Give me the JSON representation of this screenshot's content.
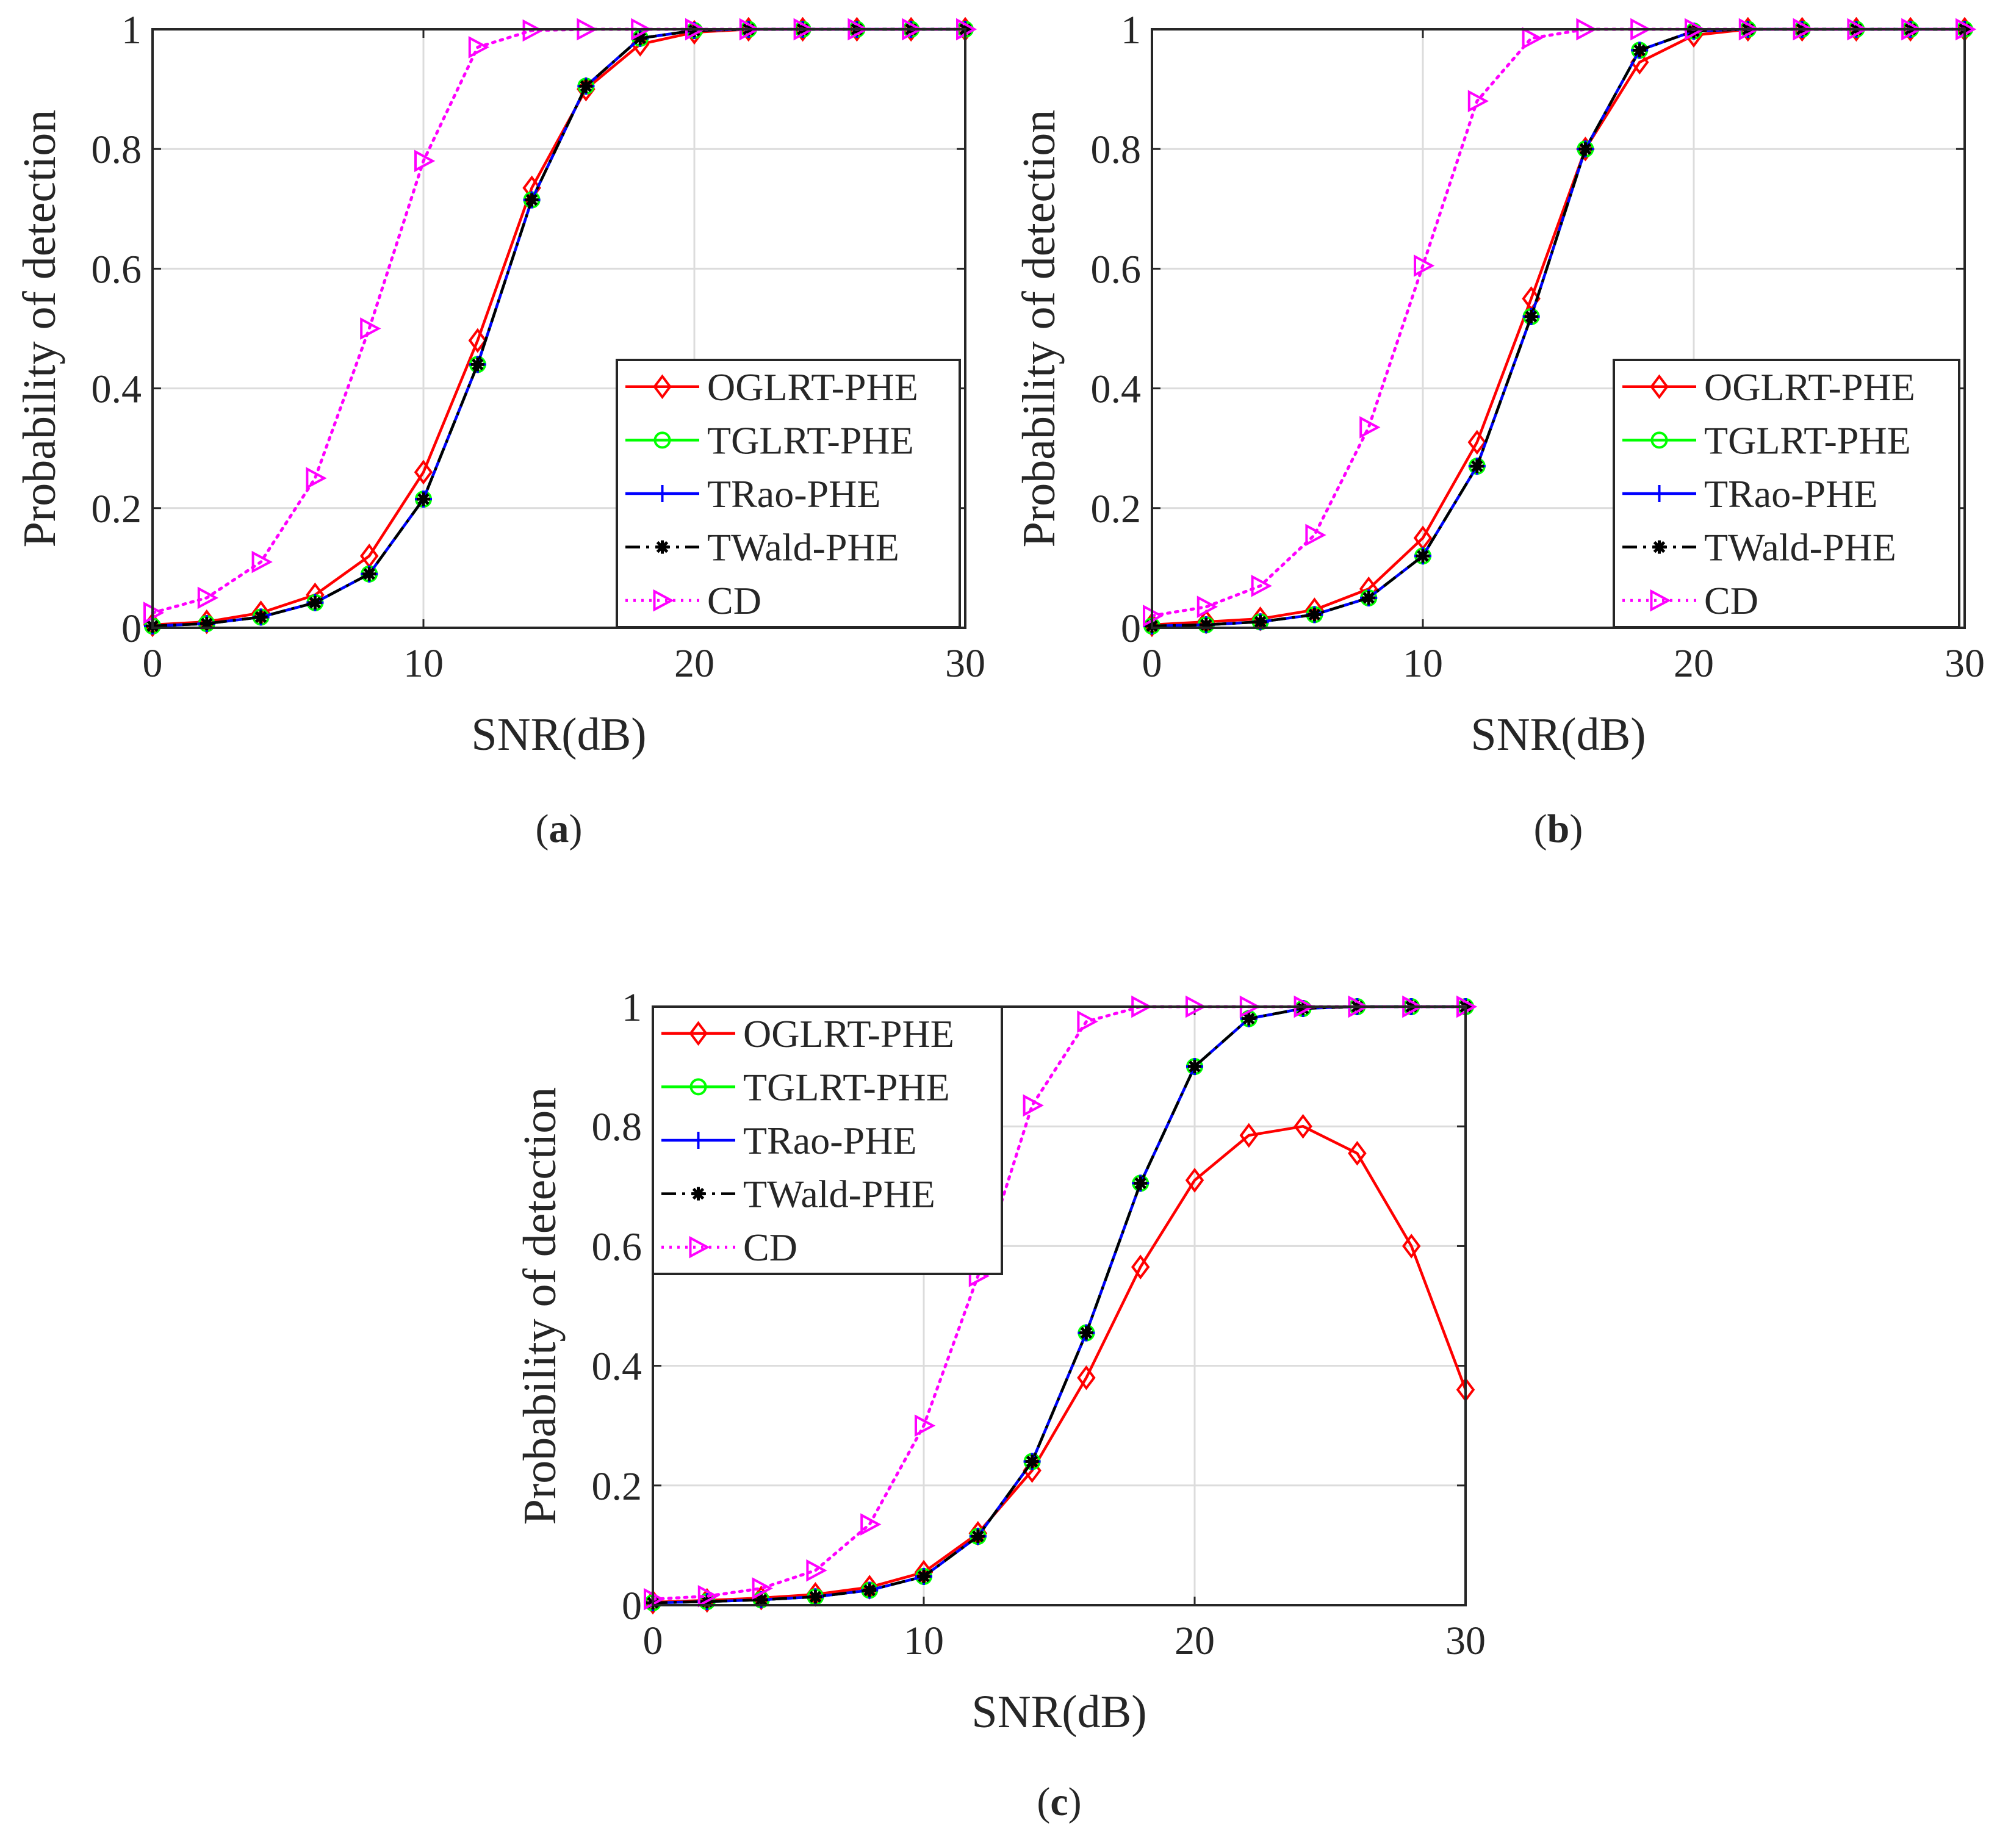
{
  "colors": {
    "OGLRT-PHE": "#ff0000",
    "TGLRT-PHE": "#00ff00",
    "TRao-PHE": "#0000ff",
    "TWald-PHE": "#000000",
    "CD": "#ff00ff",
    "grid": "#dcdcdc",
    "axis": "#262626"
  },
  "chart_data": [
    {
      "type": "line",
      "panel_label": "a",
      "xlabel": "SNR(dB)",
      "ylabel": "Probability of detection",
      "xlim": [
        0,
        30
      ],
      "ylim": [
        0,
        1
      ],
      "xticks": [
        "0",
        "10",
        "20",
        "30"
      ],
      "yticks": [
        "0",
        "0.2",
        "0.4",
        "0.6",
        "0.8",
        "1"
      ],
      "grid": true,
      "legend_position": "bottom-right",
      "x": [
        0,
        2,
        4,
        6,
        8,
        10,
        12,
        14,
        16,
        18,
        20,
        22,
        24,
        26,
        28,
        30
      ],
      "series": [
        {
          "name": "OGLRT-PHE",
          "marker": "diamond",
          "line": "solid",
          "values": [
            0.005,
            0.01,
            0.025,
            0.055,
            0.12,
            0.26,
            0.48,
            0.735,
            0.9,
            0.975,
            0.995,
            1,
            1,
            1,
            1,
            1
          ]
        },
        {
          "name": "TGLRT-PHE",
          "marker": "circle",
          "line": "solid",
          "values": [
            0.003,
            0.007,
            0.018,
            0.042,
            0.09,
            0.215,
            0.44,
            0.715,
            0.905,
            0.985,
            0.998,
            1,
            1,
            1,
            1,
            1
          ]
        },
        {
          "name": "TRao-PHE",
          "marker": "plus",
          "line": "solid",
          "values": [
            0.003,
            0.007,
            0.018,
            0.042,
            0.09,
            0.215,
            0.44,
            0.715,
            0.905,
            0.985,
            0.998,
            1,
            1,
            1,
            1,
            1
          ]
        },
        {
          "name": "TWald-PHE",
          "marker": "asterisk",
          "line": "dashdot",
          "values": [
            0.003,
            0.007,
            0.018,
            0.042,
            0.09,
            0.215,
            0.44,
            0.715,
            0.905,
            0.985,
            0.998,
            1,
            1,
            1,
            1,
            1
          ]
        },
        {
          "name": "CD",
          "marker": "triangle-right",
          "line": "dotted",
          "values": [
            0.025,
            0.05,
            0.11,
            0.25,
            0.5,
            0.78,
            0.97,
            0.998,
            1,
            1,
            1,
            1,
            1,
            1,
            1,
            1
          ]
        }
      ]
    },
    {
      "type": "line",
      "panel_label": "b",
      "xlabel": "SNR(dB)",
      "ylabel": "Probability of detection",
      "xlim": [
        0,
        30
      ],
      "ylim": [
        0,
        1
      ],
      "xticks": [
        "0",
        "10",
        "20",
        "30"
      ],
      "yticks": [
        "0",
        "0.2",
        "0.4",
        "0.6",
        "0.8",
        "1"
      ],
      "grid": true,
      "legend_position": "bottom-right",
      "x": [
        0,
        2,
        4,
        6,
        8,
        10,
        12,
        14,
        16,
        18,
        20,
        22,
        24,
        26,
        28,
        30
      ],
      "series": [
        {
          "name": "OGLRT-PHE",
          "marker": "diamond",
          "line": "solid",
          "values": [
            0.005,
            0.01,
            0.015,
            0.03,
            0.065,
            0.15,
            0.31,
            0.55,
            0.8,
            0.945,
            0.99,
            1,
            1,
            1,
            1,
            1
          ]
        },
        {
          "name": "TGLRT-PHE",
          "marker": "circle",
          "line": "solid",
          "values": [
            0.003,
            0.005,
            0.01,
            0.022,
            0.05,
            0.12,
            0.27,
            0.52,
            0.8,
            0.965,
            0.997,
            1,
            1,
            1,
            1,
            1
          ]
        },
        {
          "name": "TRao-PHE",
          "marker": "plus",
          "line": "solid",
          "values": [
            0.003,
            0.005,
            0.01,
            0.022,
            0.05,
            0.12,
            0.27,
            0.52,
            0.8,
            0.965,
            0.997,
            1,
            1,
            1,
            1,
            1
          ]
        },
        {
          "name": "TWald-PHE",
          "marker": "asterisk",
          "line": "dashdot",
          "values": [
            0.003,
            0.005,
            0.01,
            0.022,
            0.05,
            0.12,
            0.27,
            0.52,
            0.8,
            0.965,
            0.997,
            1,
            1,
            1,
            1,
            1
          ]
        },
        {
          "name": "CD",
          "marker": "triangle-right",
          "line": "dotted",
          "values": [
            0.02,
            0.035,
            0.07,
            0.155,
            0.335,
            0.605,
            0.88,
            0.985,
            1,
            1,
            1,
            1,
            1,
            1,
            1,
            1
          ]
        }
      ]
    },
    {
      "type": "line",
      "panel_label": "c",
      "xlabel": "SNR(dB)",
      "ylabel": "Probability of detection",
      "xlim": [
        0,
        30
      ],
      "ylim": [
        0,
        1
      ],
      "xticks": [
        "0",
        "10",
        "20",
        "30"
      ],
      "yticks": [
        "0",
        "0.2",
        "0.4",
        "0.6",
        "0.8",
        "1"
      ],
      "grid": true,
      "legend_position": "top-left",
      "x": [
        0,
        2,
        4,
        6,
        8,
        10,
        12,
        14,
        16,
        18,
        20,
        22,
        24,
        26,
        28,
        30
      ],
      "series": [
        {
          "name": "OGLRT-PHE",
          "marker": "diamond",
          "line": "solid",
          "values": [
            0.005,
            0.008,
            0.012,
            0.018,
            0.03,
            0.055,
            0.12,
            0.225,
            0.38,
            0.565,
            0.71,
            0.785,
            0.8,
            0.755,
            0.6,
            0.36
          ]
        },
        {
          "name": "TGLRT-PHE",
          "marker": "circle",
          "line": "solid",
          "values": [
            0.004,
            0.006,
            0.009,
            0.014,
            0.025,
            0.048,
            0.115,
            0.24,
            0.455,
            0.705,
            0.9,
            0.98,
            0.997,
            1,
            1,
            1
          ]
        },
        {
          "name": "TRao-PHE",
          "marker": "plus",
          "line": "solid",
          "values": [
            0.004,
            0.006,
            0.009,
            0.014,
            0.025,
            0.048,
            0.115,
            0.24,
            0.455,
            0.705,
            0.9,
            0.98,
            0.997,
            1,
            1,
            1
          ]
        },
        {
          "name": "TWald-PHE",
          "marker": "asterisk",
          "line": "dashdot",
          "values": [
            0.004,
            0.006,
            0.009,
            0.014,
            0.025,
            0.048,
            0.115,
            0.24,
            0.455,
            0.705,
            0.9,
            0.98,
            0.997,
            1,
            1,
            1
          ]
        },
        {
          "name": "CD",
          "marker": "triangle-right",
          "line": "dotted",
          "values": [
            0.01,
            0.015,
            0.028,
            0.058,
            0.135,
            0.3,
            0.55,
            0.835,
            0.975,
            1,
            1,
            1,
            1,
            1,
            1,
            1
          ]
        }
      ]
    }
  ]
}
